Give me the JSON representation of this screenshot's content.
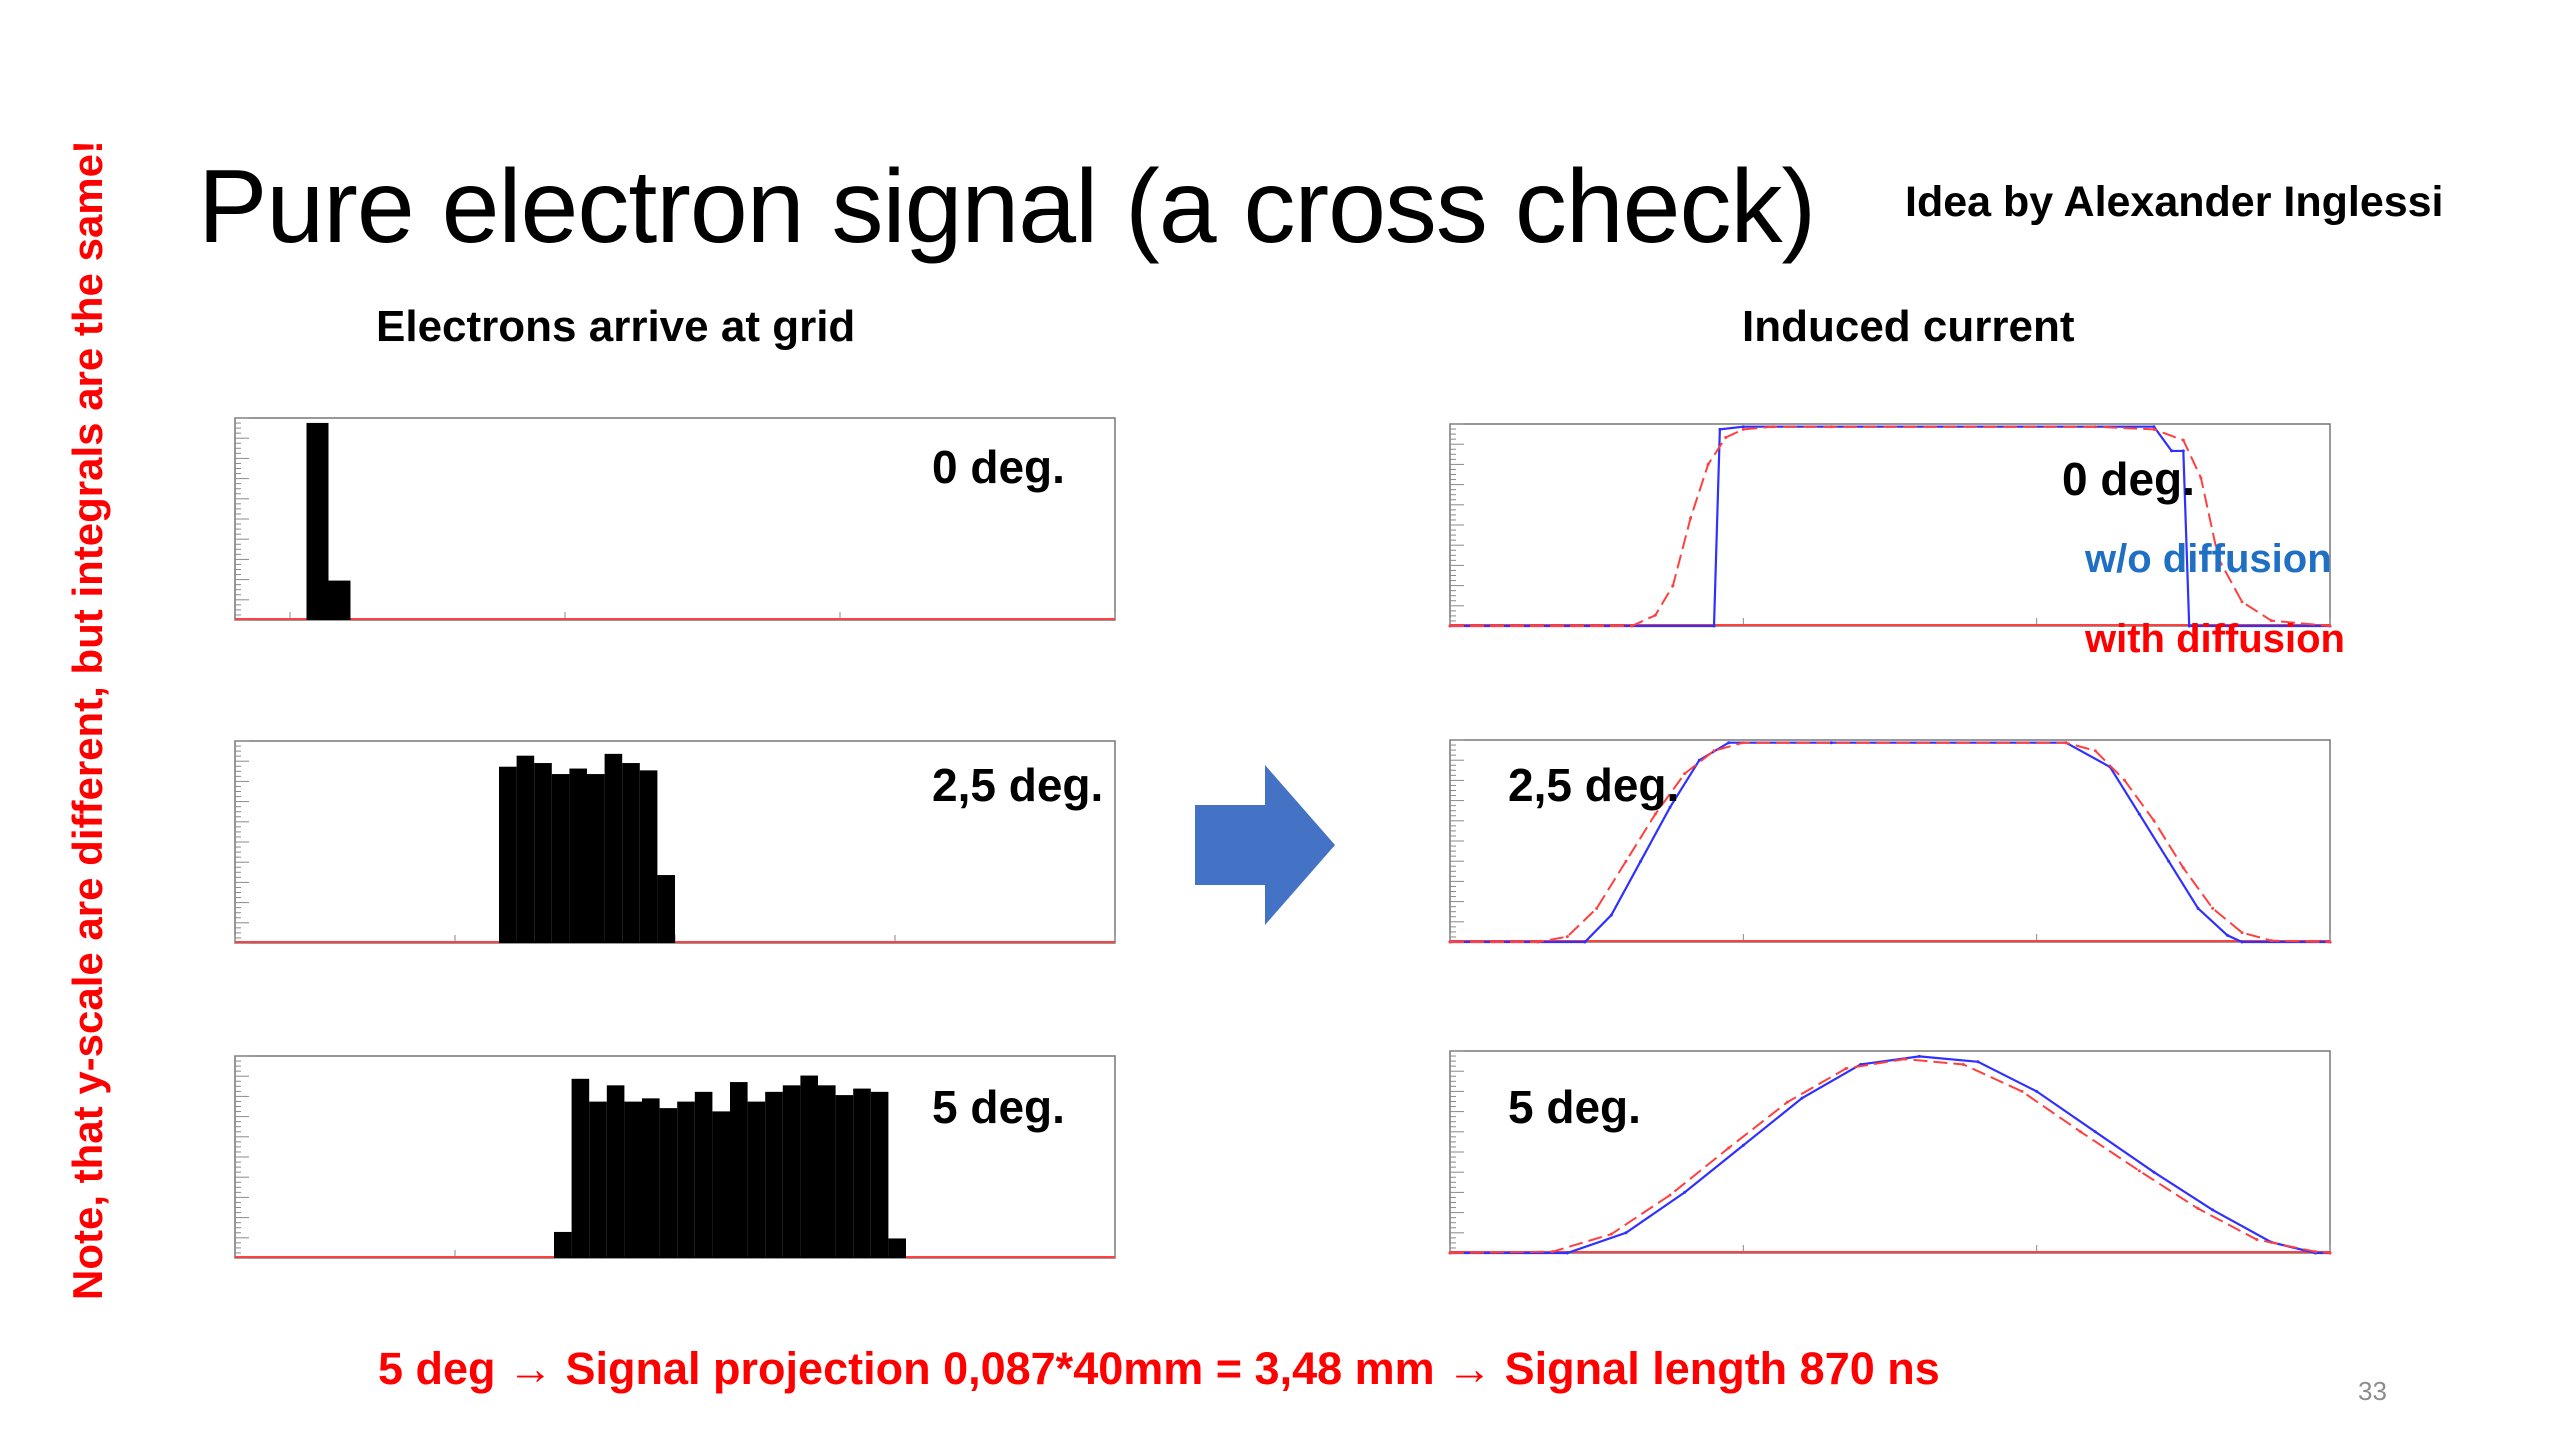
{
  "slide": {
    "title": "Pure electron signal (a cross check)",
    "credit": "Idea by Alexander Inglessi",
    "left_heading": "Electrons arrive at grid",
    "right_heading": "Induced current",
    "side_note": "Note, that y-scale  are different, but integrals are the same!",
    "bottom_note": "5 deg → Signal projection 0,087*40mm = 3,48 mm → Signal length 870 ns",
    "page_number": "33"
  },
  "colors": {
    "accent_red": "#ff0000",
    "legend_blue": "#1f6fc4",
    "histo_blue": "#3030ff",
    "histo_red": "#ff4040",
    "arrow_blue": "#4472c4"
  },
  "legend": {
    "without": "w/o diffusion",
    "with": "with diffusion"
  },
  "chart_data": [
    {
      "id": "arrival-0",
      "type": "bar",
      "label": "0 deg.",
      "xlim": [
        46800,
        50000
      ],
      "ylim": [
        0,
        82000
      ],
      "xticks": [
        47000,
        48000,
        49000,
        50000
      ],
      "bin_width": 80,
      "bins": [
        [
          47060,
          80000
        ],
        [
          47140,
          16000
        ]
      ]
    },
    {
      "id": "arrival-2.5",
      "type": "bar",
      "label": "2,5 deg.",
      "xlim": [
        46000,
        50000
      ],
      "ylim": [
        0,
        11000
      ],
      "xticks": [
        46000,
        47000,
        48000,
        49000,
        50000
      ],
      "bin_width": 80,
      "bins": [
        [
          47200,
          9600
        ],
        [
          47280,
          10200
        ],
        [
          47360,
          9800
        ],
        [
          47440,
          9200
        ],
        [
          47520,
          9500
        ],
        [
          47600,
          9200
        ],
        [
          47680,
          10300
        ],
        [
          47760,
          9800
        ],
        [
          47840,
          9400
        ],
        [
          47920,
          3700
        ]
      ]
    },
    {
      "id": "arrival-5",
      "type": "bar",
      "label": "5 deg.",
      "xlim": [
        46000,
        50000
      ],
      "ylim": [
        0,
        6200
      ],
      "xticks": [
        47000,
        48000,
        49000,
        50000
      ],
      "bin_width": 80,
      "bins": [
        [
          47450,
          800
        ],
        [
          47530,
          5500
        ],
        [
          47610,
          4800
        ],
        [
          47690,
          5300
        ],
        [
          47770,
          4800
        ],
        [
          47850,
          4900
        ],
        [
          47930,
          4600
        ],
        [
          48010,
          4800
        ],
        [
          48090,
          5100
        ],
        [
          48170,
          4500
        ],
        [
          48250,
          5400
        ],
        [
          48330,
          4800
        ],
        [
          48410,
          5100
        ],
        [
          48490,
          5300
        ],
        [
          48570,
          5600
        ],
        [
          48650,
          5300
        ],
        [
          48730,
          5000
        ],
        [
          48810,
          5200
        ],
        [
          48890,
          5100
        ],
        [
          48970,
          600
        ]
      ]
    },
    {
      "id": "induced-0",
      "type": "line",
      "label": "0 deg.",
      "xlim": [
        47000,
        50000
      ],
      "ylim": [
        0,
        1500
      ],
      "xticks": [
        47000,
        48000,
        49000,
        50000
      ],
      "series": [
        {
          "name": "w/o diffusion",
          "x": [
            47000,
            47900,
            47920,
            48000,
            49400,
            49460,
            49500,
            49520,
            50000
          ],
          "y": [
            0,
            0,
            1460,
            1480,
            1480,
            1300,
            1300,
            0,
            0
          ]
        },
        {
          "name": "with diffusion",
          "x": [
            47000,
            47620,
            47700,
            47760,
            47820,
            47880,
            47940,
            48000,
            48100,
            48300,
            49200,
            49400,
            49500,
            49560,
            49620,
            49700,
            49800,
            50000
          ],
          "y": [
            0,
            0,
            80,
            300,
            800,
            1200,
            1400,
            1460,
            1480,
            1480,
            1480,
            1460,
            1380,
            1100,
            500,
            180,
            40,
            0
          ]
        }
      ]
    },
    {
      "id": "induced-2.5",
      "type": "line",
      "label": "2,5 deg.",
      "xlim": [
        47000,
        50000
      ],
      "ylim": [
        0,
        1500
      ],
      "xticks": [
        47000,
        48000,
        49000,
        50000
      ],
      "series": [
        {
          "name": "w/o diffusion",
          "x": [
            47000,
            47460,
            47550,
            47650,
            47750,
            47850,
            47950,
            48300,
            49100,
            49250,
            49350,
            49450,
            49550,
            49650,
            49700,
            50000
          ],
          "y": [
            0,
            0,
            200,
            600,
            1000,
            1350,
            1480,
            1480,
            1480,
            1300,
            950,
            600,
            250,
            50,
            0,
            0
          ]
        },
        {
          "name": "with diffusion",
          "x": [
            47000,
            47300,
            47400,
            47500,
            47600,
            47700,
            47800,
            47900,
            48000,
            49100,
            49200,
            49300,
            49400,
            49500,
            49600,
            49700,
            49800,
            50000
          ],
          "y": [
            0,
            0,
            40,
            250,
            600,
            950,
            1250,
            1420,
            1480,
            1480,
            1420,
            1200,
            900,
            550,
            250,
            70,
            10,
            0
          ]
        }
      ]
    },
    {
      "id": "induced-5",
      "type": "line",
      "label": "5 deg.",
      "xlim": [
        47000,
        50000
      ],
      "ylim": [
        0,
        1500
      ],
      "xticks": [
        47000,
        48000,
        49000,
        50000
      ],
      "series": [
        {
          "name": "w/o diffusion",
          "x": [
            47000,
            47400,
            47600,
            47800,
            48000,
            48200,
            48400,
            48600,
            48800,
            49000,
            49200,
            49400,
            49600,
            49800,
            49950,
            50000
          ],
          "y": [
            0,
            0,
            150,
            450,
            800,
            1150,
            1400,
            1460,
            1420,
            1200,
            900,
            600,
            320,
            80,
            0,
            0
          ]
        },
        {
          "name": "with diffusion",
          "x": [
            47000,
            47350,
            47550,
            47750,
            47950,
            48150,
            48350,
            48550,
            48750,
            48950,
            49150,
            49350,
            49550,
            49750,
            49950,
            50000
          ],
          "y": [
            0,
            10,
            140,
            430,
            780,
            1120,
            1370,
            1440,
            1400,
            1200,
            900,
            610,
            330,
            100,
            10,
            0
          ]
        }
      ]
    }
  ]
}
